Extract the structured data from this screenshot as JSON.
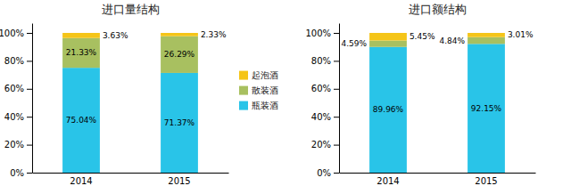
{
  "chart_data": [
    {
      "type": "bar",
      "stacked": true,
      "title": "进口量结构",
      "categories": [
        "2014",
        "2015"
      ],
      "series": [
        {
          "name": "瓶装酒",
          "color": "#29C4E8",
          "values": [
            75.04,
            71.37
          ],
          "value_labels": [
            "75.04%",
            "71.37%"
          ]
        },
        {
          "name": "散装酒",
          "color": "#A8C060",
          "values": [
            21.33,
            26.29
          ],
          "value_labels": [
            "21.33%",
            "26.29%"
          ]
        },
        {
          "name": "起泡酒",
          "color": "#F5C518",
          "values": [
            3.63,
            2.33
          ],
          "value_labels": [
            "3.63%",
            "2.33%"
          ]
        }
      ],
      "ylim": [
        0,
        107
      ],
      "yticks": [
        {
          "value": 0,
          "label": "0%"
        },
        {
          "value": 20,
          "label": "20%"
        },
        {
          "value": 40,
          "label": "40%"
        },
        {
          "value": 60,
          "label": "60%"
        },
        {
          "value": 80,
          "label": "80%"
        },
        {
          "value": 100,
          "label": "100%"
        }
      ],
      "grid": false,
      "data_labels": true,
      "legend": "right"
    },
    {
      "type": "bar",
      "stacked": true,
      "title": "进口额结构",
      "categories": [
        "2014",
        "2015"
      ],
      "series": [
        {
          "name": "瓶装酒",
          "color": "#29C4E8",
          "values": [
            89.96,
            92.15
          ],
          "value_labels": [
            "89.96%",
            "92.15%"
          ]
        },
        {
          "name": "散装酒",
          "color": "#A8C060",
          "values": [
            4.59,
            4.84
          ],
          "value_labels": [
            "4.59%",
            "4.84%"
          ]
        },
        {
          "name": "起泡酒",
          "color": "#F5C518",
          "values": [
            5.45,
            3.01
          ],
          "value_labels": [
            "5.45%",
            "3.01%"
          ]
        }
      ],
      "ylim": [
        0,
        107
      ],
      "yticks": [
        {
          "value": 0,
          "label": "0%"
        },
        {
          "value": 20,
          "label": "20%"
        },
        {
          "value": 40,
          "label": "40%"
        },
        {
          "value": 60,
          "label": "60%"
        },
        {
          "value": 80,
          "label": "80%"
        },
        {
          "value": 100,
          "label": "100%"
        }
      ],
      "grid": false,
      "data_labels": true
    }
  ]
}
